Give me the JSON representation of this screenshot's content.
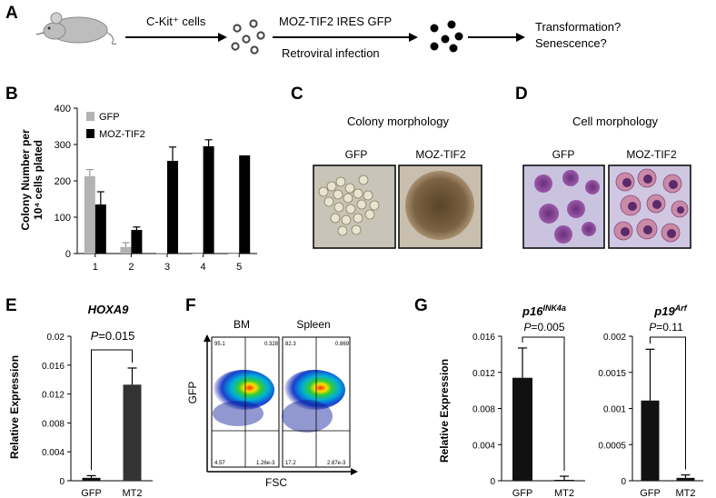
{
  "panels": {
    "a": "A",
    "b": "B",
    "c": "C",
    "d": "D",
    "e": "E",
    "f": "F",
    "g": "G"
  },
  "panel_a": {
    "step1": "C-Kit⁺ cells",
    "step2_top": "MOZ-TIF2 IRES GFP",
    "step2_bottom": "Retroviral infection",
    "q1": "Transformation?",
    "q2": "Senescence?"
  },
  "panel_c": {
    "title": "Colony morphology",
    "left": "GFP",
    "right": "MOZ-TIF2"
  },
  "panel_d": {
    "title": "Cell morphology",
    "left": "GFP",
    "right": "MOZ-TIF2"
  },
  "panel_f": {
    "left_title": "BM",
    "right_title": "Spleen",
    "ylabel": "GFP",
    "xlabel": "FSC",
    "bm_q": [
      "95.1",
      "0.328",
      "4.57",
      "1.26e-3"
    ],
    "sp_q": [
      "82.3",
      "0.869",
      "17.2",
      "2.87e-3"
    ]
  },
  "chart_data": [
    {
      "type": "bar",
      "panel": "B",
      "ylabel_line1": "Colony Number per",
      "ylabel_line2": "10⁴ cells plated",
      "categories": [
        "1",
        "2",
        "3",
        "4",
        "5"
      ],
      "ylim": [
        0,
        400
      ],
      "yticks": [
        "0",
        "100",
        "200",
        "300",
        "400"
      ],
      "legend_position": "top-left",
      "series": [
        {
          "name": "GFP",
          "color": "#b3b3b3",
          "values": [
            213,
            18,
            1,
            0,
            0
          ],
          "err": [
            18,
            12,
            0,
            0,
            0
          ]
        },
        {
          "name": "MOZ-TIF2",
          "color": "#000000",
          "values": [
            135,
            65,
            255,
            295,
            270
          ],
          "err": [
            35,
            8,
            38,
            18,
            0
          ]
        }
      ]
    },
    {
      "type": "bar",
      "panel": "E",
      "title": "HOXA9",
      "ylabel": "Relative Expression",
      "categories": [
        "GFP",
        "MT2"
      ],
      "values": [
        0.0004,
        0.0133
      ],
      "err": [
        0.0003,
        0.0023
      ],
      "ylim": [
        0,
        0.02
      ],
      "yticks": [
        "0",
        "0.004",
        "0.008",
        "0.012",
        "0.016",
        "0.02"
      ],
      "p_label": "P=0.015",
      "colors": [
        "#111111",
        "#333333"
      ]
    },
    {
      "type": "bar",
      "panel": "G",
      "title": "p16INK4a",
      "ylabel": "Relative Expression",
      "categories": [
        "GFP",
        "MT2"
      ],
      "values": [
        0.0114,
        0.0001
      ],
      "err": [
        0.0033,
        0.0004
      ],
      "ylim": [
        0,
        0.016
      ],
      "yticks": [
        "0",
        "0.004",
        "0.008",
        "0.012",
        "0.016"
      ],
      "p_label": "P=0.005",
      "colors": [
        "#111111",
        "#111111"
      ]
    },
    {
      "type": "bar",
      "panel": "G",
      "title": "p19Arf",
      "categories": [
        "GFP",
        "MT2"
      ],
      "values": [
        0.00111,
        4e-05
      ],
      "err": [
        0.00071,
        4e-05
      ],
      "ylim": [
        0,
        0.002
      ],
      "yticks": [
        "0",
        "0.0005",
        "0.001",
        "0.0015",
        "0.002"
      ],
      "p_label": "P=0.11",
      "colors": [
        "#111111",
        "#111111"
      ]
    }
  ]
}
